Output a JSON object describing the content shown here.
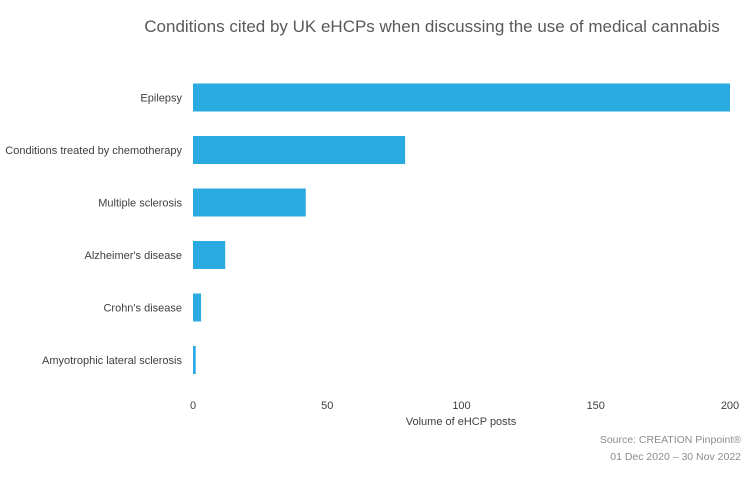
{
  "chart_data": {
    "type": "bar",
    "orientation": "horizontal",
    "title": "Conditions cited by UK eHCPs when discussing the use of medical cannabis",
    "xlabel": "Volume of eHCP posts",
    "ylabel": "",
    "categories": [
      "Epilepsy",
      "Conditions treated by chemotherapy",
      "Multiple sclerosis",
      "Alzheimer's disease",
      "Crohn's disease",
      "Amyotrophic lateral sclerosis"
    ],
    "values": [
      200,
      79,
      42,
      12,
      3,
      1
    ],
    "xlim": [
      0,
      200
    ],
    "ticks": [
      "0",
      "50",
      "100",
      "150",
      "200"
    ],
    "grid": false,
    "bar_color": "#29abe2"
  },
  "source": {
    "line1": "Source: CREATION Pinpoint®",
    "line2": "01 Dec 2020 – 30 Nov 2022"
  }
}
